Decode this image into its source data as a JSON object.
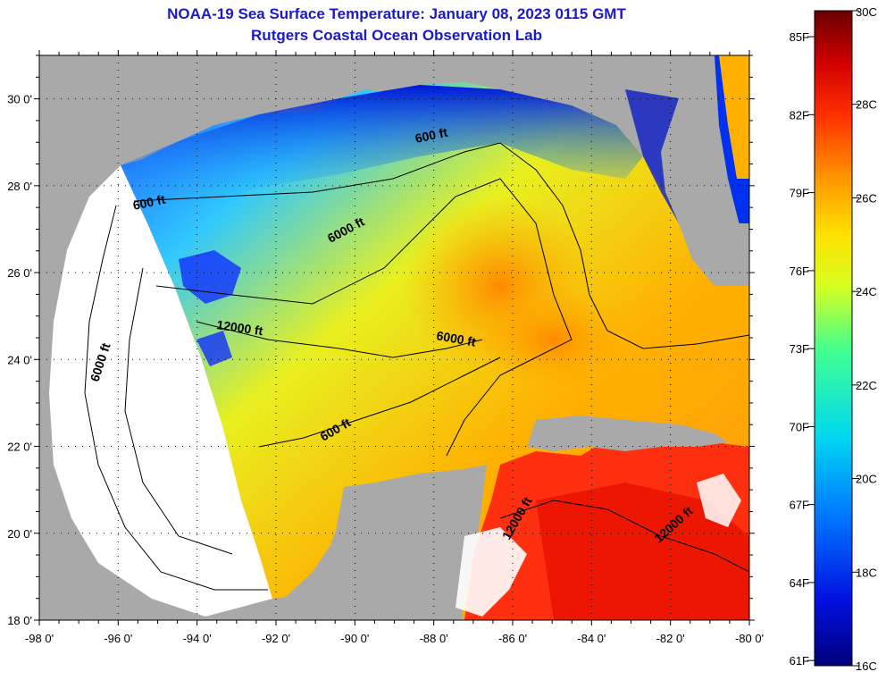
{
  "title_line1": "NOAA-19 Sea Surface Temperature:  January 08, 2023 0115 GMT",
  "title_line2": "Rutgers Coastal Ocean Observation Lab",
  "map": {
    "x_ticks": [
      "-98 0'",
      "-96 0'",
      "-94 0'",
      "-92 0'",
      "-90 0'",
      "-88 0'",
      "-86 0'",
      "-84 0'",
      "-82 0'",
      "-80 0'"
    ],
    "y_ticks": [
      "30 0'",
      "28 0'",
      "26 0'",
      "24 0'",
      "22 0'",
      "20 0'",
      "18 0'"
    ],
    "lon_range": [
      -98,
      -80
    ],
    "lat_range": [
      18,
      31
    ],
    "land_color": "#a9a9a9",
    "nodata_color": "#ffffff",
    "contour_labels": [
      "600 ft",
      "600 ft",
      "6000 ft",
      "12000 ft",
      "6000 ft",
      "6000 ft",
      "600 ft",
      "12000 ft",
      "12000 ft"
    ]
  },
  "colorbar": {
    "fahrenheit_labels": [
      "85F",
      "82F",
      "79F",
      "76F",
      "73F",
      "70F",
      "67F",
      "64F",
      "61F"
    ],
    "celsius_labels": [
      "30C",
      "28C",
      "26C",
      "24C",
      "22C",
      "20C",
      "18C",
      "16C"
    ],
    "range_c": [
      16,
      30
    ]
  }
}
